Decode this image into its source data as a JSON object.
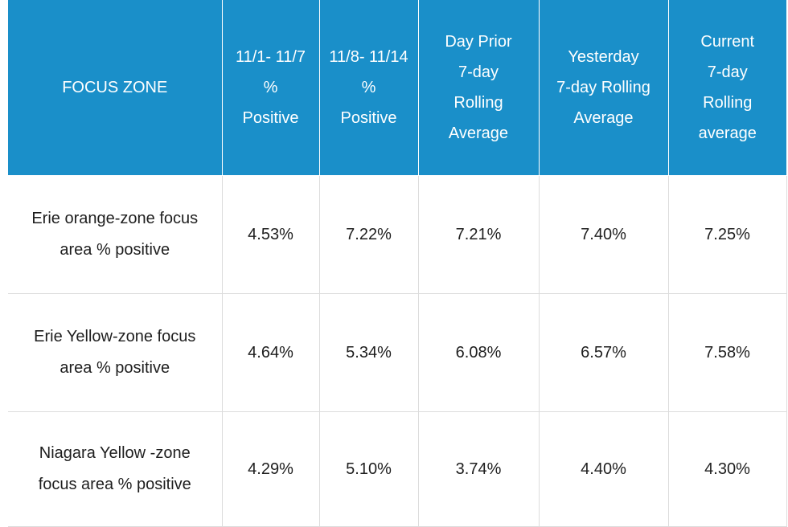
{
  "chart_data": {
    "type": "table",
    "columns": [
      {
        "key": "zone",
        "header_lines": [
          "FOCUS ZONE"
        ]
      },
      {
        "key": "w1",
        "header_lines": [
          "11/1- 11/7",
          "%",
          "Positive"
        ]
      },
      {
        "key": "w2",
        "header_lines": [
          "11/8- 11/14",
          "%",
          "Positive"
        ]
      },
      {
        "key": "day_prior",
        "header_lines": [
          "Day Prior",
          "7-day",
          "Rolling",
          "Average"
        ]
      },
      {
        "key": "yesterday",
        "header_lines": [
          "Yesterday",
          "7-day Rolling",
          "Average"
        ]
      },
      {
        "key": "current",
        "header_lines": [
          "Current",
          "7-day",
          "Rolling",
          "average"
        ]
      }
    ],
    "rows": [
      {
        "zone_lines": [
          "Erie orange-zone focus",
          "area % positive"
        ],
        "values": [
          "4.53%",
          "7.22%",
          "7.21%",
          "7.40%",
          "7.25%"
        ]
      },
      {
        "zone_lines": [
          "Erie Yellow-zone focus",
          "area % positive"
        ],
        "values": [
          "4.64%",
          "5.34%",
          "6.08%",
          "6.57%",
          "7.58%"
        ]
      },
      {
        "zone_lines": [
          "Niagara Yellow -zone",
          "focus area % positive"
        ],
        "values": [
          "4.29%",
          "5.10%",
          "3.74%",
          "4.40%",
          "4.30%"
        ]
      }
    ]
  },
  "colors": {
    "header_bg": "#1a8fc9",
    "header_text": "#ffffff",
    "body_text": "#1e1e1e",
    "grid": "#dcdcdc"
  }
}
